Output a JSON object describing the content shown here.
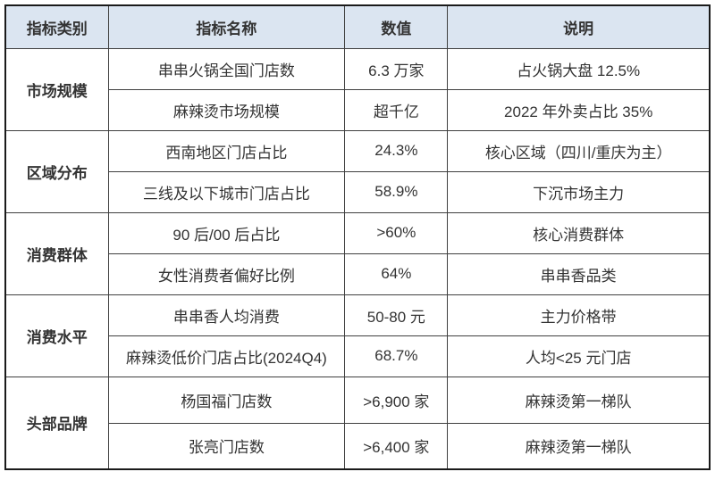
{
  "colors": {
    "header_bg": "#DBE5F1",
    "border": "#3F3F3F",
    "outer_border": "#1A1A1A",
    "text": "#333333"
  },
  "table": {
    "headers": [
      "指标类别",
      "指标名称",
      "数值",
      "说明"
    ],
    "groups": [
      {
        "category": "市场规模",
        "rows": [
          {
            "name": "串串火锅全国门店数",
            "value": "6.3 万家",
            "note": "占火锅大盘 12.5%"
          },
          {
            "name": "麻辣烫市场规模",
            "value": "超千亿",
            "note": "2022 年外卖占比 35%"
          }
        ]
      },
      {
        "category": "区域分布",
        "rows": [
          {
            "name": "西南地区门店占比",
            "value": "24.3%",
            "note": "核心区域（四川/重庆为主）"
          },
          {
            "name": "三线及以下城市门店占比",
            "value": "58.9%",
            "note": "下沉市场主力"
          }
        ]
      },
      {
        "category": "消费群体",
        "rows": [
          {
            "name": "90 后/00 后占比",
            "value": ">60%",
            "note": "核心消费群体"
          },
          {
            "name": "女性消费者偏好比例",
            "value": "64%",
            "note": "串串香品类"
          }
        ]
      },
      {
        "category": "消费水平",
        "rows": [
          {
            "name": "串串香人均消费",
            "value": "50-80 元",
            "note": "主力价格带"
          },
          {
            "name": "麻辣烫低价门店占比(2024Q4)",
            "value": "68.7%",
            "note": "人均<25 元门店"
          }
        ]
      },
      {
        "category": "头部品牌",
        "rows": [
          {
            "name": "杨国福门店数",
            "value": ">6,900 家",
            "note": "麻辣烫第一梯队"
          },
          {
            "name": "张亮门店数",
            "value": ">6,400 家",
            "note": "麻辣烫第一梯队"
          }
        ]
      }
    ]
  }
}
